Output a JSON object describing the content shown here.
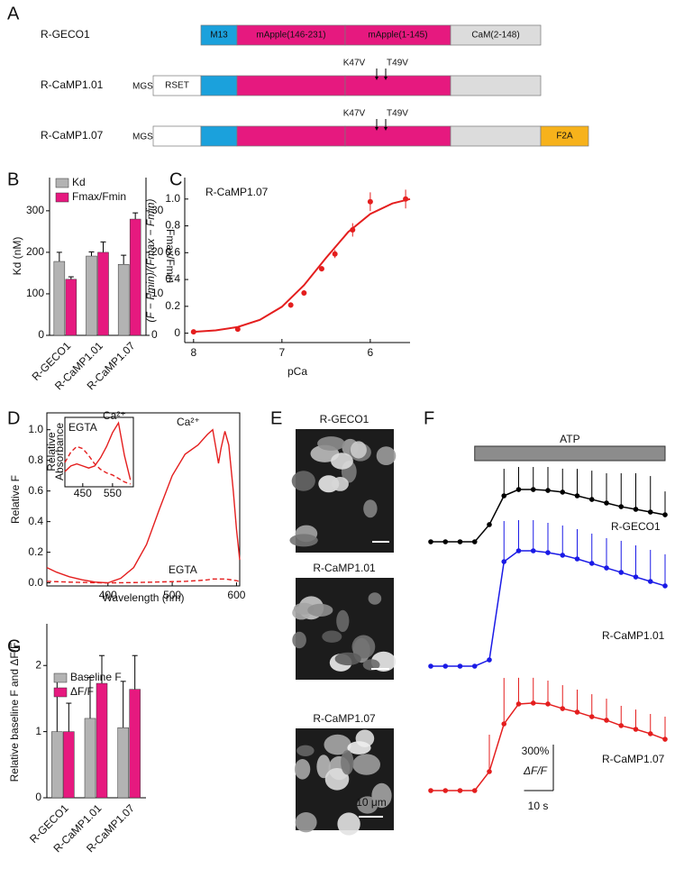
{
  "panel_labels": [
    "A",
    "B",
    "C",
    "D",
    "E",
    "F",
    "G"
  ],
  "diagram": {
    "constructs": [
      {
        "name": "R-GECO1",
        "domains": [
          "M13",
          "mApple(146-231)",
          "mApple(1-145)",
          "CaM(2-148)"
        ]
      },
      {
        "name": "R-CaMP1.01",
        "prefix": "MGS-",
        "tag": "RSET",
        "mutations": [
          "K47V",
          "T49V"
        ]
      },
      {
        "name": "R-CaMP1.07",
        "prefix": "MGS-",
        "mutations": [
          "K47V",
          "T49V"
        ],
        "suffix": "F2A"
      }
    ]
  },
  "micrographs": {
    "labels": [
      "R-GECO1",
      "R-CaMP1.01",
      "R-CaMP1.07"
    ],
    "scale_label": "10 μm"
  },
  "chart_data": [
    {
      "type": "bar",
      "categories": [
        "R-GECO1",
        "R-CaMP1.01",
        "R-CaMP1.07"
      ],
      "series": [
        {
          "name": "Kd",
          "color": "#b3b3b3",
          "values": [
            178,
            191,
            171
          ],
          "errors": [
            22,
            10,
            22
          ]
        },
        {
          "name": "Fmax/Fmin",
          "color": "#e6197f",
          "axis": "y2",
          "values": [
            13.5,
            20,
            28
          ],
          "errors": [
            0.6,
            2.5,
            1.5
          ]
        }
      ],
      "ylabel": "Kd (nM)",
      "y2label": "Fmax/Fmin",
      "ylim": [
        0,
        380
      ],
      "yticks": [
        0,
        100,
        200,
        300
      ],
      "y2lim": [
        0,
        38
      ],
      "y2ticks": [
        0,
        10,
        20,
        30
      ]
    },
    {
      "type": "scatter",
      "color": "#e41e1e",
      "annotation": "R-CaMP1.07",
      "fit": {
        "x": [
          8,
          7.75,
          7.5,
          7.25,
          7,
          6.75,
          6.5,
          6.25,
          6,
          5.75,
          5.55
        ],
        "values": [
          0.01,
          0.021,
          0.046,
          0.099,
          0.197,
          0.358,
          0.562,
          0.754,
          0.889,
          0.967,
          1.0
        ]
      },
      "points": {
        "x": [
          8,
          7.5,
          6.9,
          6.75,
          6.55,
          6.4,
          6.2,
          6,
          5.6
        ],
        "values": [
          0.01,
          0.03,
          0.21,
          0.3,
          0.48,
          0.59,
          0.77,
          0.98,
          1.0
        ],
        "errors": [
          0.01,
          0.01,
          0.02,
          0.02,
          0.02,
          0.03,
          0.05,
          0.07,
          0.07
        ]
      },
      "xlabel": "pCa",
      "ylabel": "(F − Fmin)/(Fmax − Fmin)",
      "xlim": [
        8.1,
        5.55
      ],
      "xticks": [
        8,
        7,
        6
      ],
      "ylim": [
        -0.07,
        1.16
      ],
      "yticks": [
        0,
        0.2,
        0.4,
        0.6,
        0.8,
        {
          "value": 1,
          "label": "1.0"
        }
      ]
    },
    {
      "type": "line",
      "x": [
        305,
        320,
        340,
        360,
        380,
        400,
        420,
        440,
        460,
        480,
        500,
        520,
        540,
        555,
        563,
        568,
        572,
        576,
        582,
        588,
        595,
        600,
        605
      ],
      "series": [
        {
          "name": "Ca²⁺",
          "color": "#e41e1e",
          "line_style": "solid",
          "values": [
            0.1,
            0.07,
            0.04,
            0.02,
            0.005,
            0,
            0.03,
            0.1,
            0.25,
            0.48,
            0.7,
            0.84,
            0.9,
            0.97,
            1.0,
            0.88,
            0.78,
            0.88,
            0.99,
            0.9,
            0.6,
            0.35,
            0.15
          ]
        },
        {
          "name": "EGTA",
          "color": "#e41e1e",
          "line_style": "dashed",
          "values": [
            0.01,
            0.008,
            0.005,
            0.003,
            0.001,
            0,
            0.001,
            0.002,
            0.004,
            0.006,
            0.008,
            0.01,
            0.015,
            0.02,
            0.025,
            0.025,
            0.025,
            0.025,
            0.025,
            0.022,
            0.018,
            0.014,
            0.01
          ]
        }
      ],
      "xlabel": "Wavelength (nm)",
      "ylabel": "Relative F",
      "xlim": [
        305,
        605
      ],
      "xticks": [
        400,
        500,
        600
      ],
      "ylim": [
        -0.02,
        1.11
      ],
      "yticks": [
        {
          "value": 0,
          "label": "0.0"
        },
        0.2,
        0.4,
        0.6,
        0.8,
        {
          "value": 1,
          "label": "1.0"
        }
      ]
    },
    {
      "type": "line",
      "x": [
        390,
        410,
        430,
        450,
        470,
        490,
        510,
        530,
        550,
        570,
        590,
        610
      ],
      "series": [
        {
          "name": "EGTA",
          "color": "#e41e1e",
          "line_style": "dashed",
          "values": [
            0.35,
            0.5,
            0.58,
            0.55,
            0.45,
            0.33,
            0.25,
            0.2,
            0.17,
            0.12,
            0.07,
            0.04
          ]
        },
        {
          "name": "Ca²⁺",
          "color": "#e41e1e",
          "line_style": "solid",
          "values": [
            0.22,
            0.3,
            0.33,
            0.3,
            0.27,
            0.3,
            0.42,
            0.58,
            0.78,
            0.92,
            0.45,
            0.1
          ]
        }
      ],
      "ylabel": [
        "Relative",
        "Absorbance"
      ],
      "xlim": [
        390,
        620
      ],
      "xticks": [
        450,
        550
      ],
      "ylim": [
        0,
        1
      ]
    },
    {
      "type": "line",
      "x": [
        0,
        5,
        10,
        15,
        20,
        25,
        30,
        35,
        40,
        45,
        50,
        55,
        60,
        65,
        70,
        75,
        80
      ],
      "series": [
        {
          "name": "R-GECO1",
          "color": "#000000",
          "values": [
            0,
            0,
            0,
            0,
            112,
            300,
            341,
            341,
            335,
            324,
            300,
            276,
            253,
            229,
            212,
            194,
            176
          ],
          "errors": [
            null,
            null,
            null,
            null,
            null,
            176,
            147,
            147,
            153,
            153,
            176,
            188,
            194,
            218,
            235,
            235,
            153
          ]
        },
        {
          "name": "R-CaMP1.01",
          "color": "#1a1ae6",
          "values": [
            0,
            0,
            0,
            0,
            41,
            682,
            753,
            753,
            741,
            724,
            700,
            671,
            641,
            612,
            582,
            553,
            524
          ],
          "errors": [
            null,
            null,
            null,
            null,
            null,
            265,
            200,
            200,
            194,
            194,
            194,
            194,
            194,
            206,
            206,
            206,
            206
          ]
        },
        {
          "name": "R-CaMP1.07",
          "color": "#e41e1e",
          "values": [
            0,
            0,
            0,
            0,
            124,
            435,
            565,
            571,
            565,
            535,
            512,
            482,
            459,
            424,
            400,
            371,
            335
          ],
          "errors": [
            null,
            null,
            null,
            null,
            241,
            300,
            171,
            165,
            153,
            153,
            147,
            147,
            141,
            129,
            129,
            129,
            147
          ]
        }
      ],
      "stimulus": {
        "label": "ATP",
        "interval": [
          15,
          80
        ]
      },
      "scale_bars": {
        "y": {
          "value": 300,
          "label": "300%",
          "unit": "ΔF/F"
        },
        "x": {
          "value": 10,
          "label": "10 s"
        }
      }
    },
    {
      "type": "bar",
      "categories": [
        "R-GECO1",
        "R-CaMP1.01",
        "R-CaMP1.07"
      ],
      "series": [
        {
          "name": "Baseline F",
          "color": "#b3b3b3",
          "values": [
            1.0,
            1.2,
            1.06
          ],
          "errors": [
            0.85,
            0.62,
            0.7
          ]
        },
        {
          "name": "ΔF/F",
          "color": "#e6197f",
          "values": [
            1.0,
            1.73,
            1.64
          ],
          "errors": [
            0.43,
            0.42,
            0.51
          ]
        }
      ],
      "ylabel": "Relative baseline F and ΔF/F",
      "ylim": [
        0,
        2.63
      ],
      "yticks": [
        0,
        1,
        2
      ]
    }
  ]
}
